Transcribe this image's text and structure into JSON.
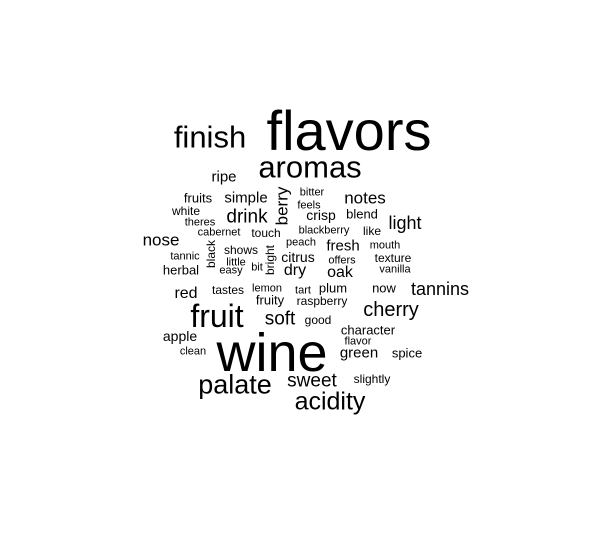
{
  "colors": {
    "background": "#ffffff",
    "text": "#000000"
  },
  "words": [
    {
      "text": "flavors"
    },
    {
      "text": "wine"
    },
    {
      "text": "aromas"
    },
    {
      "text": "finish"
    },
    {
      "text": "fruit"
    },
    {
      "text": "palate"
    },
    {
      "text": "acidity"
    },
    {
      "text": "cherry"
    },
    {
      "text": "tannins"
    },
    {
      "text": "sweet"
    },
    {
      "text": "soft"
    },
    {
      "text": "drink"
    },
    {
      "text": "notes"
    },
    {
      "text": "light"
    },
    {
      "text": "nose"
    },
    {
      "text": "red"
    },
    {
      "text": "berry"
    },
    {
      "text": "green"
    },
    {
      "text": "ripe"
    },
    {
      "text": "simple"
    },
    {
      "text": "fresh"
    },
    {
      "text": "dry"
    },
    {
      "text": "oak"
    },
    {
      "text": "crisp"
    },
    {
      "text": "fruits"
    },
    {
      "text": "white"
    },
    {
      "text": "blend"
    },
    {
      "text": "citrus"
    },
    {
      "text": "plum"
    },
    {
      "text": "now"
    },
    {
      "text": "apple"
    },
    {
      "text": "spice"
    },
    {
      "text": "herbal"
    },
    {
      "text": "fruity"
    },
    {
      "text": "raspberry"
    },
    {
      "text": "character"
    },
    {
      "text": "slightly"
    },
    {
      "text": "good"
    },
    {
      "text": "black"
    },
    {
      "text": "bright"
    },
    {
      "text": "like"
    },
    {
      "text": "shows"
    },
    {
      "text": "touch"
    },
    {
      "text": "tastes"
    },
    {
      "text": "bitter"
    },
    {
      "text": "feels"
    },
    {
      "text": "theres"
    },
    {
      "text": "cabernet"
    },
    {
      "text": "blackberry"
    },
    {
      "text": "peach"
    },
    {
      "text": "mouth"
    },
    {
      "text": "texture"
    },
    {
      "text": "offers"
    },
    {
      "text": "vanilla"
    },
    {
      "text": "tannic"
    },
    {
      "text": "little"
    },
    {
      "text": "bit"
    },
    {
      "text": "easy"
    },
    {
      "text": "lemon"
    },
    {
      "text": "tart"
    },
    {
      "text": "flavor"
    },
    {
      "text": "clean"
    }
  ]
}
